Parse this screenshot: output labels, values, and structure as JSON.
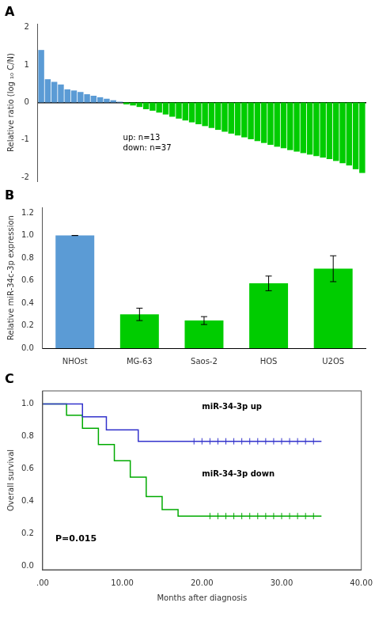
{
  "chart_data": [
    {
      "type": "bar",
      "title": "A",
      "categories": [
        null,
        null,
        null,
        null,
        null,
        null,
        null,
        null,
        null,
        null,
        null,
        null,
        null,
        null,
        null,
        null,
        null,
        null,
        null,
        null,
        null,
        null,
        null,
        null,
        null,
        null,
        null,
        null,
        null,
        null,
        null,
        null,
        null,
        null,
        null,
        null,
        null,
        null,
        null,
        null,
        null,
        null,
        null,
        null,
        null,
        null,
        null,
        null,
        null,
        null
      ],
      "values": [
        1.4,
        0.62,
        0.55,
        0.48,
        0.35,
        0.32,
        0.28,
        0.22,
        0.18,
        0.14,
        0.1,
        0.06,
        0.02,
        -0.05,
        -0.08,
        -0.12,
        -0.18,
        -0.22,
        -0.27,
        -0.32,
        -0.38,
        -0.43,
        -0.48,
        -0.53,
        -0.58,
        -0.63,
        -0.68,
        -0.73,
        -0.78,
        -0.83,
        -0.88,
        -0.93,
        -0.98,
        -1.03,
        -1.08,
        -1.13,
        -1.18,
        -1.22,
        -1.27,
        -1.31,
        -1.35,
        -1.39,
        -1.43,
        -1.47,
        -1.51,
        -1.56,
        -1.62,
        -1.68,
        -1.78,
        -1.88
      ],
      "colors": [
        "#5b9bd5",
        "#5b9bd5",
        "#5b9bd5",
        "#5b9bd5",
        "#5b9bd5",
        "#5b9bd5",
        "#5b9bd5",
        "#5b9bd5",
        "#5b9bd5",
        "#5b9bd5",
        "#5b9bd5",
        "#5b9bd5",
        "#5b9bd5",
        "#00cc00",
        "#00cc00",
        "#00cc00",
        "#00cc00",
        "#00cc00",
        "#00cc00",
        "#00cc00",
        "#00cc00",
        "#00cc00",
        "#00cc00",
        "#00cc00",
        "#00cc00",
        "#00cc00",
        "#00cc00",
        "#00cc00",
        "#00cc00",
        "#00cc00",
        "#00cc00",
        "#00cc00",
        "#00cc00",
        "#00cc00",
        "#00cc00",
        "#00cc00",
        "#00cc00",
        "#00cc00",
        "#00cc00",
        "#00cc00",
        "#00cc00",
        "#00cc00",
        "#00cc00",
        "#00cc00",
        "#00cc00",
        "#00cc00",
        "#00cc00",
        "#00cc00",
        "#00cc00",
        "#00cc00"
      ],
      "ylabel": "Relative ratio (log ₁₀ C/N)",
      "ylim": [
        -2.1,
        2.1
      ],
      "yticks": [
        -2,
        -1,
        0,
        1,
        2
      ],
      "annotations": [
        "up: n=13\ndown: n=37"
      ],
      "grid": false,
      "tick_labels": "y"
    },
    {
      "type": "bar",
      "title": "B",
      "categories": [
        "NHOst",
        "MG-63",
        "Saos-2",
        "HOS",
        "U2OS"
      ],
      "values": [
        1.0,
        0.3,
        0.245,
        0.575,
        0.705
      ],
      "errors": [
        0.0,
        0.055,
        0.035,
        0.065,
        0.115
      ],
      "colors": [
        "#5b9bd5",
        "#00cc00",
        "#00cc00",
        "#00cc00",
        "#00cc00"
      ],
      "ylabel": "Relative miR-34c-3p expression",
      "ylim": [
        0,
        1.25
      ],
      "yticks": [
        {
          "value": 0,
          "label": "0.0"
        },
        0.2,
        0.4,
        0.6,
        0.8,
        {
          "value": 1,
          "label": "1.0"
        },
        1.2
      ],
      "grid": false
    },
    {
      "type": "step",
      "title": "C",
      "series": [
        {
          "color": "#3333cc",
          "x": [
            0,
            5,
            5,
            8,
            8,
            10,
            10,
            12,
            12,
            13,
            13,
            17,
            17,
            19,
            19,
            35
          ],
          "values": [
            1.0,
            1.0,
            0.92,
            0.92,
            0.84,
            0.84,
            0.84,
            0.84,
            0.77,
            0.77,
            0.77,
            0.77,
            0.77,
            0.77,
            0.77,
            0.77
          ],
          "censor_x": [
            19,
            20,
            21,
            22,
            23,
            24,
            25,
            26,
            27,
            28,
            29,
            30,
            31,
            32,
            33,
            34
          ],
          "censor_y": [
            0.77,
            0.77,
            0.77,
            0.77,
            0.77,
            0.77,
            0.77,
            0.77,
            0.77,
            0.77,
            0.77,
            0.77,
            0.77,
            0.77,
            0.77,
            0.77
          ]
        },
        {
          "color": "#00aa00",
          "x": [
            0,
            3,
            3,
            5,
            5,
            7,
            7,
            9,
            9,
            11,
            11,
            13,
            13,
            15,
            15,
            17,
            17,
            18,
            18,
            19,
            19,
            21,
            21,
            35
          ],
          "values": [
            1.0,
            1.0,
            0.93,
            0.93,
            0.85,
            0.85,
            0.75,
            0.75,
            0.65,
            0.65,
            0.55,
            0.55,
            0.43,
            0.43,
            0.35,
            0.35,
            0.31,
            0.31,
            0.31,
            0.31,
            0.31,
            0.31,
            0.31,
            0.31
          ],
          "censor_x": [
            21,
            22,
            23,
            24,
            25,
            26,
            27,
            28,
            29,
            30,
            31,
            32,
            33,
            34
          ],
          "censor_y": [
            0.31,
            0.31,
            0.31,
            0.31,
            0.31,
            0.31,
            0.31,
            0.31,
            0.31,
            0.31,
            0.31,
            0.31,
            0.31,
            0.31
          ]
        }
      ],
      "xlabel": "Months after diagnosis",
      "ylabel": "Overall survival",
      "xlim": [
        0,
        40
      ],
      "ylim": [
        -0.02,
        1.08
      ],
      "xticks": [
        {
          "value": 0,
          "label": ".00"
        },
        {
          "value": 10,
          "label": "10.00"
        },
        {
          "value": 20,
          "label": "20.00"
        },
        {
          "value": 30,
          "label": "30.00"
        },
        {
          "value": 40,
          "label": "40.00"
        }
      ],
      "yticks": [
        {
          "value": 0,
          "label": "0.0"
        },
        0.2,
        0.4,
        0.6,
        0.8,
        {
          "value": 1,
          "label": "1.0"
        }
      ],
      "annotations": [
        "miR-34-3p up",
        "miR-34-3p down",
        "P=0.015"
      ],
      "grid": false
    }
  ]
}
